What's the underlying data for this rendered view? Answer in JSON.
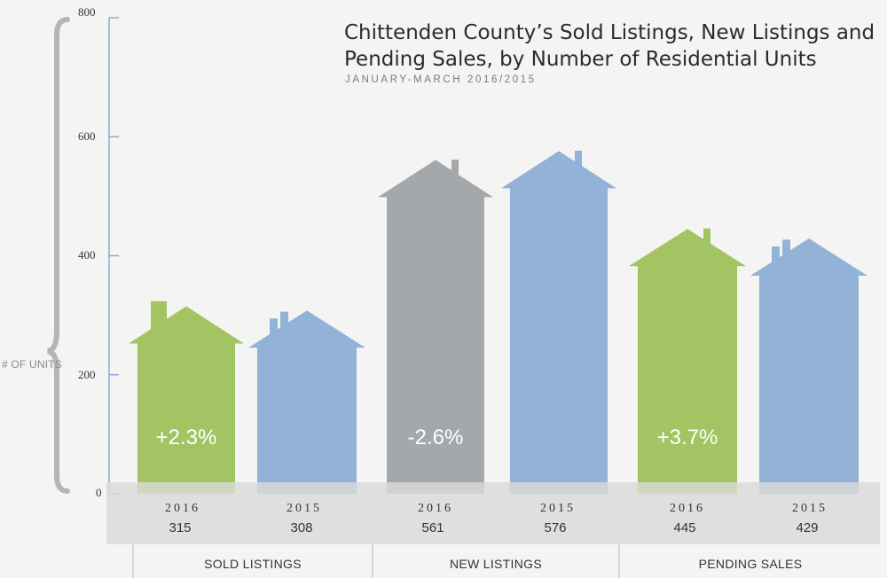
{
  "chart_data": {
    "type": "bar",
    "title": "Chittenden County’s Sold Listings, New Listings and Pending Sales, by Number of Residential Units",
    "subtitle": "JANUARY-MARCH 2016/2015",
    "ylabel": "# OF UNITS",
    "ylim": [
      0,
      800
    ],
    "yticks": [
      "0",
      "200",
      "400",
      "600",
      "800"
    ],
    "grid": false,
    "categories": [
      "SOLD LISTINGS",
      "NEW LISTINGS",
      "PENDING SALES"
    ],
    "series": [
      {
        "name": "2016",
        "values": [
          315,
          561,
          445
        ]
      },
      {
        "name": "2015",
        "values": [
          308,
          576,
          429
        ]
      }
    ],
    "bars": [
      {
        "group": "SOLD LISTINGS",
        "year": "2016",
        "value": 315,
        "value_label": "315",
        "change": "+2.3%",
        "color": "#a2c462"
      },
      {
        "group": "SOLD LISTINGS",
        "year": "2015",
        "value": 308,
        "value_label": "308",
        "change": "",
        "color": "#92b2d7"
      },
      {
        "group": "NEW LISTINGS",
        "year": "2016",
        "value": 561,
        "value_label": "561",
        "change": "-2.6%",
        "color": "#a5a8ab"
      },
      {
        "group": "NEW LISTINGS",
        "year": "2015",
        "value": 576,
        "value_label": "576",
        "change": "",
        "color": "#92b2d7"
      },
      {
        "group": "PENDING SALES",
        "year": "2016",
        "value": 445,
        "value_label": "445",
        "change": "+3.7%",
        "color": "#a2c462"
      },
      {
        "group": "PENDING SALES",
        "year": "2015",
        "value": 429,
        "value_label": "429",
        "change": "",
        "color": "#92b2d7"
      }
    ]
  }
}
